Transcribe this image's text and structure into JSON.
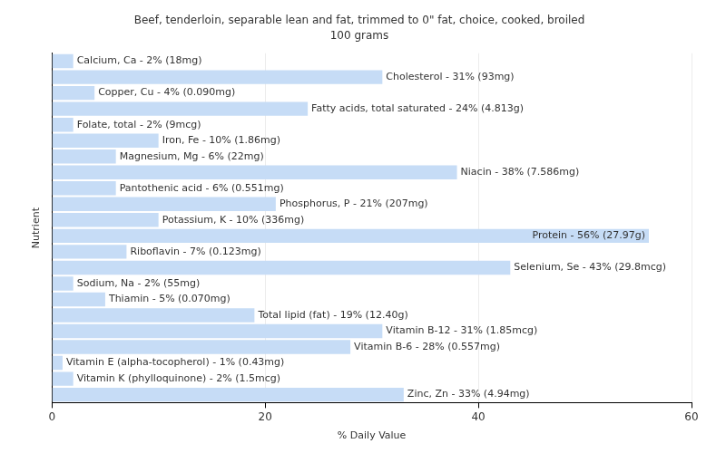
{
  "chart_data": {
    "type": "bar",
    "orientation": "horizontal",
    "title": "Beef, tenderloin, separable lean and fat, trimmed to 0\" fat, choice, cooked, broiled",
    "subtitle": "100 grams",
    "x_label": "% Daily Value",
    "y_label": "Nutrient",
    "categories": [
      null,
      null,
      null,
      null,
      null,
      null,
      null,
      null,
      null,
      null,
      null,
      null,
      null,
      null,
      null,
      null,
      null,
      null,
      null,
      null,
      null,
      null
    ],
    "values": [
      2,
      31,
      4,
      24,
      2,
      10,
      6,
      38,
      6,
      21,
      10,
      56,
      7,
      43,
      2,
      5,
      19,
      31,
      28,
      1,
      2,
      33
    ],
    "value_labels": [
      "Calcium, Ca - 2% (18mg)",
      "Cholesterol - 31% (93mg)",
      "Copper, Cu - 4% (0.090mg)",
      "Fatty acids, total saturated - 24% (4.813g)",
      "Folate, total - 2% (9mcg)",
      "Iron, Fe - 10% (1.86mg)",
      "Magnesium, Mg - 6% (22mg)",
      "Niacin - 38% (7.586mg)",
      "Pantothenic acid - 6% (0.551mg)",
      "Phosphorus, P - 21% (207mg)",
      "Potassium, K - 10% (336mg)",
      "Protein - 56% (27.97g)",
      "Riboflavin - 7% (0.123mg)",
      "Selenium, Se - 43% (29.8mcg)",
      "Sodium, Na - 2% (55mg)",
      "Thiamin - 5% (0.070mg)",
      "Total lipid (fat) - 19% (12.40g)",
      "Vitamin B-12 - 31% (1.85mcg)",
      "Vitamin B-6 - 28% (0.557mg)",
      "Vitamin E (alpha-tocopherol) - 1% (0.43mg)",
      "Vitamin K (phylloquinone) - 2% (1.5mcg)",
      "Zinc, Zn - 33% (4.94mg)"
    ],
    "data_labels": true,
    "color": "#c6dcf6",
    "xlim": [
      0,
      60
    ],
    "xticks": [
      0,
      20,
      40,
      60
    ],
    "grid": true,
    "tick_labels": "x"
  }
}
